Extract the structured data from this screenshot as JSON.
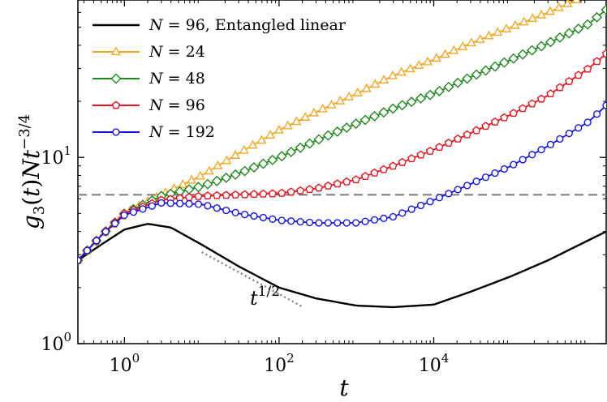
{
  "chart_data": {
    "type": "line",
    "xlabel": "t",
    "ylabel": "g₃(t) N t^(−3/4)",
    "xscale": "log",
    "yscale": "log",
    "xlim": [
      0.25,
      1700000
    ],
    "ylim": [
      1,
      70
    ],
    "x_ticks": [
      {
        "value": 1,
        "label_base": "10",
        "label_exp": "0"
      },
      {
        "value": 100,
        "label_base": "10",
        "label_exp": "2"
      },
      {
        "value": 10000,
        "label_base": "10",
        "label_exp": "4"
      }
    ],
    "y_ticks": [
      {
        "value": 1,
        "label_base": "10",
        "label_exp": "0"
      },
      {
        "value": 10,
        "label_base": "10",
        "label_exp": "1"
      }
    ],
    "legend_position": "top-left",
    "hline": {
      "y": 6.3,
      "color": "#808080",
      "style": "dashed"
    },
    "annotation": {
      "text_base": "t",
      "text_exp": "1/2",
      "slope_line": {
        "x": [
          10,
          200
        ],
        "y": [
          3.1,
          1.58
        ]
      }
    },
    "series": [
      {
        "name": "N = 96, Entangled linear",
        "name_italic": "N",
        "name_rest": " = 96, Entangled linear",
        "color": "#000000",
        "marker": "none",
        "x": [
          0.25,
          0.5,
          1,
          2,
          4,
          10,
          30,
          100,
          300,
          1000,
          3000,
          10000,
          30000,
          100000,
          300000,
          1700000
        ],
        "y": [
          2.8,
          3.4,
          4.1,
          4.4,
          4.2,
          3.4,
          2.6,
          2.0,
          1.75,
          1.6,
          1.57,
          1.62,
          1.9,
          2.3,
          2.8,
          4.0
        ]
      },
      {
        "name": "N = 24",
        "name_italic": "N",
        "name_rest": " = 24",
        "color": "#f5a623",
        "marker": "triangle",
        "x": [
          0.25,
          0.5,
          1,
          3,
          10,
          30,
          100,
          300,
          1000,
          3000,
          10000,
          30000,
          100000,
          300000,
          700000
        ],
        "y": [
          2.8,
          3.8,
          5.0,
          6.3,
          8.0,
          10.5,
          14.0,
          17.5,
          22.0,
          27.5,
          33.5,
          41.0,
          50.0,
          60.0,
          70.0
        ]
      },
      {
        "name": "N = 48",
        "name_italic": "N",
        "name_rest": " = 48",
        "color": "#1e8a1e",
        "marker": "diamond",
        "x": [
          0.25,
          0.5,
          1,
          3,
          10,
          30,
          100,
          300,
          1000,
          3000,
          10000,
          30000,
          100000,
          300000,
          1000000,
          1700000
        ],
        "y": [
          2.8,
          3.8,
          5.0,
          6.2,
          7.0,
          8.2,
          10.0,
          12.3,
          15.2,
          18.3,
          22.0,
          27.0,
          33.5,
          41.0,
          52.0,
          62.0
        ]
      },
      {
        "name": "N = 96",
        "name_italic": "N",
        "name_rest": " = 96",
        "color": "#e8141e",
        "marker": "pentagon",
        "x": [
          0.25,
          0.5,
          1,
          3,
          10,
          30,
          100,
          300,
          1000,
          3000,
          10000,
          30000,
          100000,
          300000,
          1000000,
          1700000
        ],
        "y": [
          2.8,
          3.8,
          5.0,
          5.9,
          6.2,
          6.3,
          6.4,
          6.8,
          7.6,
          9.0,
          11.0,
          13.5,
          17.0,
          21.5,
          30.0,
          36.0
        ]
      },
      {
        "name": "N = 192",
        "name_italic": "N",
        "name_rest": " = 192",
        "color": "#1414e6",
        "marker": "circle",
        "x": [
          0.25,
          0.5,
          1,
          3,
          10,
          30,
          100,
          300,
          1000,
          3000,
          10000,
          30000,
          100000,
          300000,
          1000000,
          1700000
        ],
        "y": [
          2.8,
          3.8,
          4.9,
          5.7,
          5.6,
          5.0,
          4.6,
          4.45,
          4.45,
          4.8,
          5.9,
          7.2,
          9.0,
          11.5,
          15.5,
          19.0
        ]
      }
    ]
  }
}
